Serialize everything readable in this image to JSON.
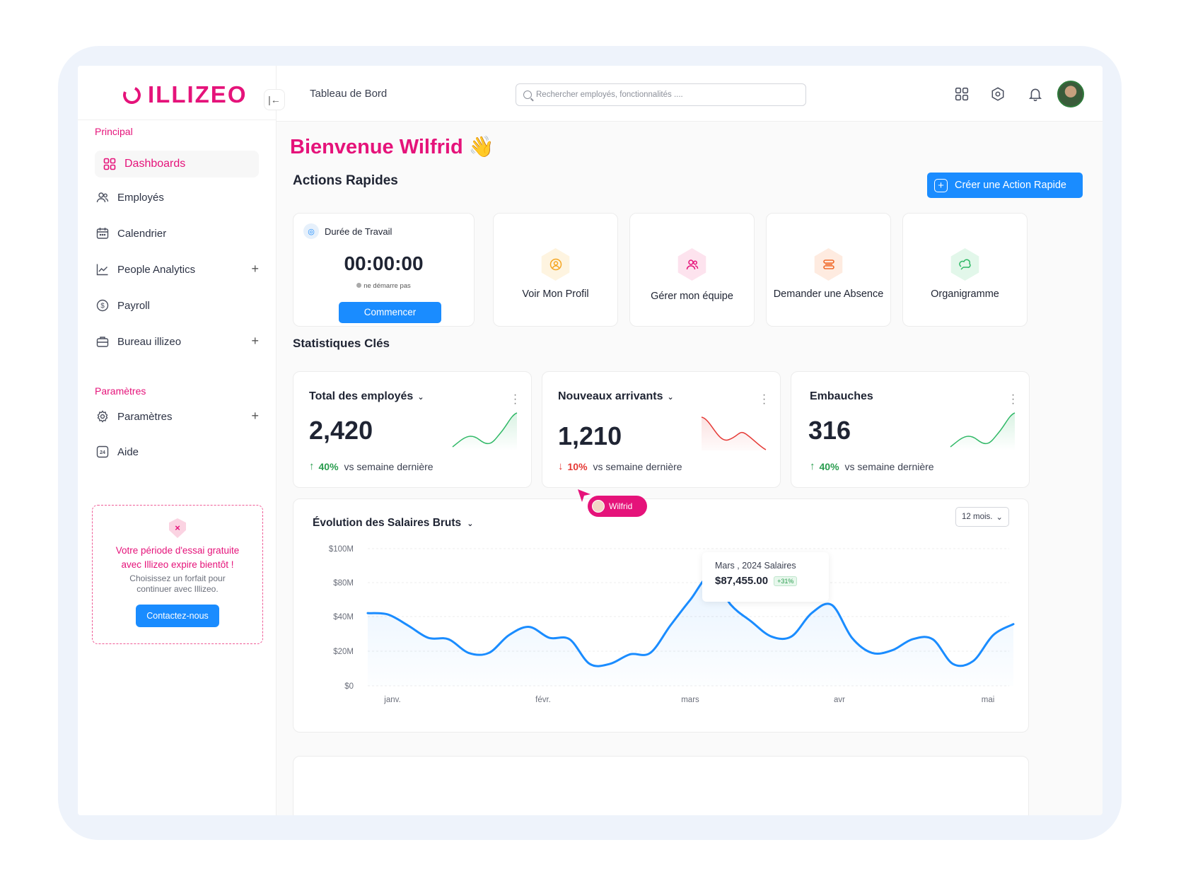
{
  "brand": {
    "name": "ILLIZEO",
    "color": "#e5137a",
    "accent": "#1a8cff"
  },
  "sidebar": {
    "section_principal": "Principal",
    "items": [
      {
        "label": "Dashboards",
        "icon": "dashboard-icon",
        "active": true
      },
      {
        "label": "Employés",
        "icon": "users-icon"
      },
      {
        "label": "Calendrier",
        "icon": "calendar-icon"
      },
      {
        "label": "People Analytics",
        "icon": "analytics-icon",
        "expandable": true
      },
      {
        "label": "Payroll",
        "icon": "dollar-icon"
      },
      {
        "label": "Bureau illizeo",
        "icon": "briefcase-icon",
        "expandable": true
      }
    ],
    "section_parametres": "Paramètres",
    "settings_items": [
      {
        "label": "Paramètres",
        "icon": "gear-icon",
        "expandable": true
      },
      {
        "label": "Aide",
        "icon": "help-24-icon"
      }
    ],
    "trial": {
      "title": "Votre période d'essai gratuite avec Illizeo expire bientôt !",
      "subtitle": "Choisissez un forfait pour continuer avec Illizeo.",
      "button": "Contactez-nous"
    }
  },
  "header": {
    "page_name": "Tableau de Bord",
    "search_placeholder": "Rechercher employés, fonctionnalités ...."
  },
  "main": {
    "welcome": "Bienvenue Wilfrid 👋",
    "quick_actions_title": "Actions Rapides",
    "create_button": "Créer une Action Rapide",
    "timer": {
      "title": "Durée de Travail",
      "value": "00:00:00",
      "status": "ne démarre pas",
      "button": "Commencer"
    },
    "quick_actions": [
      {
        "label": "Voir Mon Profil",
        "icon": "profile-icon",
        "color": "#f5a623",
        "bg": "#fef4e0"
      },
      {
        "label": "Gérer mon équipe",
        "icon": "team-icon",
        "color": "#e5137a",
        "bg": "#fde3ee"
      },
      {
        "label": "Demander une Absence",
        "icon": "absence-icon",
        "color": "#f06a2a",
        "bg": "#feebe0"
      },
      {
        "label": "Organigramme",
        "icon": "org-chart-icon",
        "color": "#2fb866",
        "bg": "#e2f7ea"
      }
    ],
    "stats_title": "Statistiques Clés",
    "stats": [
      {
        "title": "Total des employés",
        "value": "2,420",
        "pct": "40%",
        "trend": "up",
        "caption": "vs semaine dernière",
        "dropdown": true
      },
      {
        "title": "Nouveaux arrivants",
        "value": "1,210",
        "pct": "10%",
        "trend": "down",
        "caption": "vs semaine dernière",
        "dropdown": true
      },
      {
        "title": "Embauches",
        "value": "316",
        "pct": "40%",
        "trend": "up",
        "caption": "vs semaine dernière",
        "dropdown": false
      }
    ],
    "cursor_user": "Wilfrid",
    "salary_chart": {
      "title": "Évolution des Salaires Bruts",
      "period": "12 mois.",
      "tooltip": {
        "label": "Mars , 2024 Salaires",
        "value": "$87,455.00",
        "badge": "+31%"
      }
    }
  },
  "chart_data": {
    "type": "line",
    "title": "Évolution des Salaires Bruts",
    "x_tick_labels": [
      "janv.",
      "févr.",
      "mars",
      "avr",
      "mai"
    ],
    "y_tick_labels": [
      "$100M",
      "$80M",
      "$40M",
      "$20M",
      "$0"
    ],
    "ylim": [
      0,
      100
    ],
    "series": [
      {
        "values": [
          53,
          52,
          44,
          35,
          34,
          24,
          24,
          37,
          43,
          35,
          34,
          16,
          16,
          23,
          24,
          44,
          63,
          80,
          59,
          47,
          36,
          36,
          53,
          59,
          35,
          24,
          26,
          34,
          34,
          16,
          18,
          37,
          45
        ]
      }
    ],
    "grid": true,
    "highlight": {
      "x": "mars",
      "value": 80
    }
  }
}
